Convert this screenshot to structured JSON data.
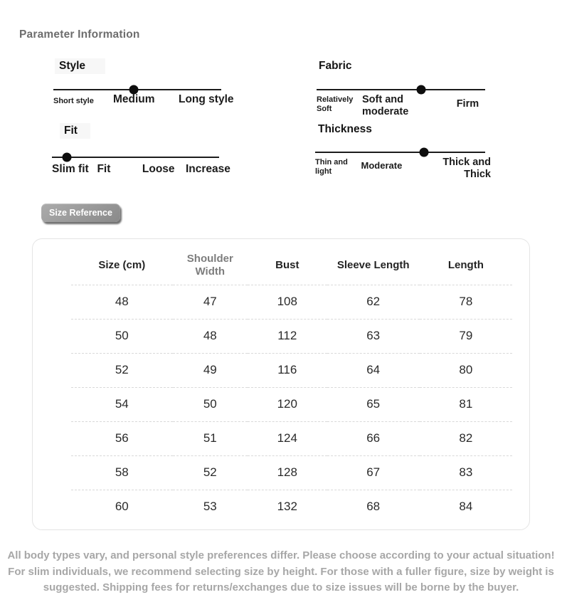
{
  "page": {
    "title": "Parameter Information",
    "footer": "All body types vary, and personal style preferences differ. Please choose according to your actual situation! For slim individuals, we recommend selecting size by height. For those with a fuller figure, size by weight is suggested. Shipping fees for returns/exchanges due to size issues will be borne by the buyer."
  },
  "parameters": {
    "style": {
      "title": "Style",
      "dot_percent": 48,
      "scale": [
        "Short style",
        "Medium",
        "Long style"
      ]
    },
    "fabric": {
      "title": "Fabric",
      "dot_percent": 62,
      "scale": [
        "Relatively Soft",
        "Soft and moderate",
        "Firm"
      ]
    },
    "fit": {
      "title": "Fit",
      "dot_percent": 9,
      "scale": [
        "Slim fit",
        "Fit",
        "Loose",
        "Increase"
      ]
    },
    "thickness": {
      "title": "Thickness",
      "dot_percent": 64,
      "scale": [
        "Thin and light",
        "Moderate",
        "Thick and Thick"
      ]
    }
  },
  "size_reference": {
    "label": "Size Reference"
  },
  "size_table": {
    "headers": [
      "Size (cm)",
      "Shoulder Width",
      "Bust",
      "Sleeve Length",
      "Length"
    ],
    "rows": [
      [
        48,
        47,
        108,
        62,
        78
      ],
      [
        50,
        48,
        112,
        63,
        79
      ],
      [
        52,
        49,
        116,
        64,
        80
      ],
      [
        54,
        50,
        120,
        65,
        81
      ],
      [
        56,
        51,
        124,
        66,
        82
      ],
      [
        58,
        52,
        128,
        67,
        83
      ],
      [
        60,
        53,
        132,
        68,
        84
      ]
    ]
  }
}
